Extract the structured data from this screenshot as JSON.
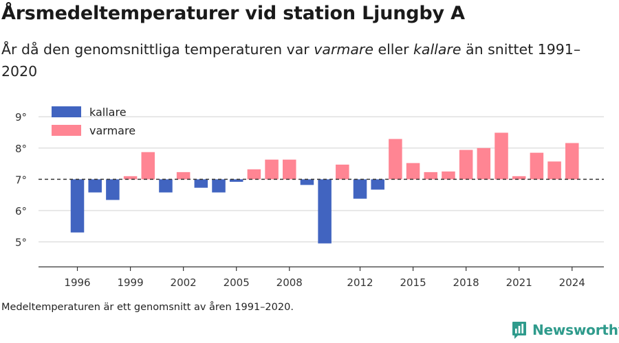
{
  "title": "Årsmedeltemperaturer vid station Ljungby A",
  "subtitle": {
    "part1": "År då den genomsnittliga temperaturen var ",
    "em1": "varmare",
    "part2": " eller ",
    "em2": "kallare",
    "part3": " än snittet 1991–2020"
  },
  "footnote": "Medeltemperaturen är ett genomsnitt av åren 1991–2020.",
  "brand": {
    "name": "Newsworthy",
    "icon": "newsworthy-logo-icon",
    "color": "#2f9b8c"
  },
  "chart_data": {
    "type": "bar",
    "baseline": 7,
    "ylim": [
      4.2,
      9.4
    ],
    "yticks": [
      5,
      6,
      7,
      8,
      9
    ],
    "ytick_labels": [
      "5°",
      "6°",
      "7°",
      "8°",
      "9°"
    ],
    "xlim": [
      1993.8,
      2025.8
    ],
    "xticks": [
      1996,
      1999,
      2002,
      2005,
      2008,
      2012,
      2015,
      2018,
      2021,
      2024
    ],
    "xtick_labels": [
      "1996",
      "1999",
      "2002",
      "2005",
      "2008",
      "2012",
      "2015",
      "2018",
      "2021",
      "2024"
    ],
    "grid": true,
    "legend_position": "top-left",
    "colors": {
      "kallare": "#4164c0",
      "varmare": "#ff8593",
      "baseline": "#333333",
      "grid": "#dddddd",
      "axis": "#333333"
    },
    "legend": [
      {
        "key": "kallare",
        "label": "kallare"
      },
      {
        "key": "varmare",
        "label": "varmare"
      }
    ],
    "series": [
      {
        "name": "kallare",
        "data": [
          [
            1996,
            5.3
          ],
          [
            1997,
            6.58
          ],
          [
            1998,
            6.34
          ],
          [
            2001,
            6.58
          ],
          [
            2003,
            6.73
          ],
          [
            2004,
            6.58
          ],
          [
            2005,
            6.92
          ],
          [
            2009,
            6.82
          ],
          [
            2010,
            4.95
          ],
          [
            2012,
            6.38
          ],
          [
            2013,
            6.67
          ]
        ]
      },
      {
        "name": "varmare",
        "data": [
          [
            1999,
            7.1
          ],
          [
            2000,
            7.87
          ],
          [
            2002,
            7.23
          ],
          [
            2006,
            7.32
          ],
          [
            2007,
            7.63
          ],
          [
            2008,
            7.63
          ],
          [
            2011,
            7.47
          ],
          [
            2014,
            8.29
          ],
          [
            2015,
            7.52
          ],
          [
            2016,
            7.23
          ],
          [
            2017,
            7.25
          ],
          [
            2018,
            7.94
          ],
          [
            2019,
            8.0
          ],
          [
            2020,
            8.49
          ],
          [
            2021,
            7.1
          ],
          [
            2022,
            7.85
          ],
          [
            2023,
            7.57
          ],
          [
            2024,
            8.16
          ]
        ]
      }
    ]
  }
}
